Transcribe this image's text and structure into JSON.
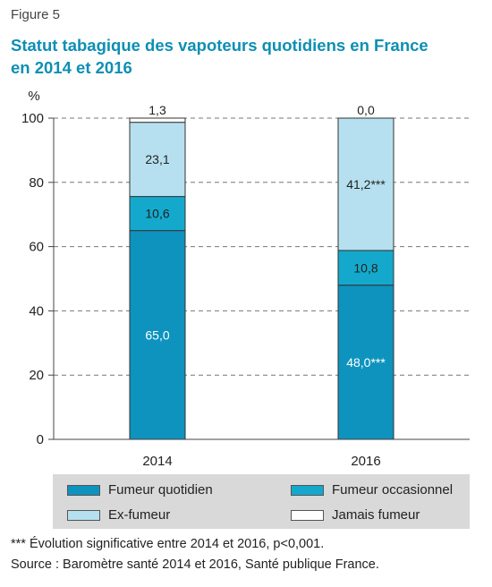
{
  "figure_label": "Figure 5",
  "title_line1": "Statut tabagique des vapoteurs quotidiens en France",
  "title_line2": "en 2014 et 2016",
  "chart_data": {
    "type": "bar",
    "stacked": true,
    "unit_label": "%",
    "categories": [
      "2014",
      "2016"
    ],
    "ylim": [
      0,
      100
    ],
    "yticks": [
      0,
      20,
      40,
      60,
      80,
      100
    ],
    "grid": "dashed horizontal",
    "series": [
      {
        "name": "Fumeur quotidien",
        "color": "#0e93be",
        "values": [
          65.0,
          48.0
        ],
        "labels": [
          "65,0",
          "48,0***"
        ],
        "label_color": "#ffffff"
      },
      {
        "name": "Fumeur occasionnel",
        "color": "#14a9cc",
        "values": [
          10.6,
          10.8
        ],
        "labels": [
          "10,6",
          "10,8"
        ],
        "label_color": "#222222"
      },
      {
        "name": "Ex-fumeur",
        "color": "#b6e0ef",
        "values": [
          23.1,
          41.2
        ],
        "labels": [
          "23,1",
          "41,2***"
        ],
        "label_color": "#222222"
      },
      {
        "name": "Jamais fumeur",
        "color": "#ffffff",
        "values": [
          1.3,
          0.0
        ],
        "labels": [
          "1,3",
          "0,0"
        ],
        "label_color": "#222222"
      }
    ],
    "legend_placement": "bottom"
  },
  "notes": {
    "significance": "*** Évolution significative entre 2014 et 2016, p<0,001.",
    "source": "Source : Baromètre santé 2014 et 2016, Santé publique France."
  }
}
